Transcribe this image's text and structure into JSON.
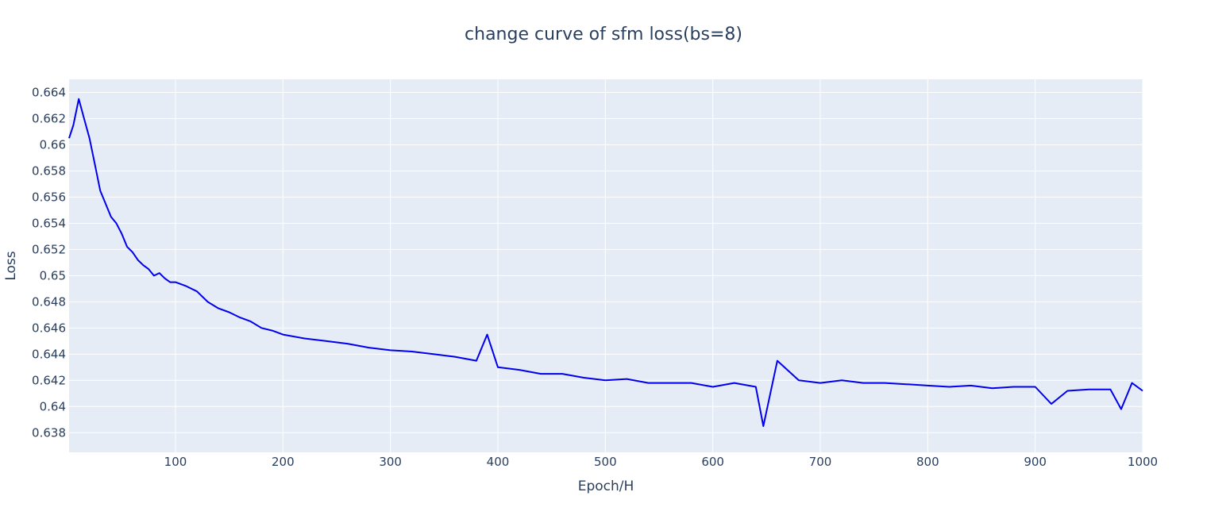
{
  "chart_data": {
    "type": "line",
    "title": "change curve of sfm loss(bs=8)",
    "xlabel": "Epoch/H",
    "ylabel": "Loss",
    "xlim": [
      1,
      1000
    ],
    "ylim": [
      0.6365,
      0.665
    ],
    "x_ticks": [
      100,
      200,
      300,
      400,
      500,
      600,
      700,
      800,
      900,
      1000
    ],
    "y_ticks": [
      0.638,
      0.64,
      0.642,
      0.644,
      0.646,
      0.648,
      0.65,
      0.652,
      0.654,
      0.656,
      0.658,
      0.66,
      0.662,
      0.664
    ],
    "grid": true,
    "line_color": "#0000ee",
    "background": "#e5ecf6",
    "series": [
      {
        "x": [
          1,
          5,
          10,
          15,
          20,
          25,
          30,
          35,
          40,
          45,
          50,
          55,
          60,
          65,
          70,
          75,
          80,
          85,
          90,
          95,
          100,
          110,
          120,
          130,
          140,
          150,
          160,
          170,
          180,
          190,
          200,
          220,
          240,
          260,
          280,
          300,
          320,
          340,
          360,
          380,
          390,
          400,
          420,
          440,
          460,
          480,
          500,
          520,
          540,
          560,
          580,
          600,
          620,
          640,
          647,
          660,
          680,
          700,
          720,
          740,
          760,
          780,
          800,
          820,
          840,
          860,
          880,
          900,
          915,
          930,
          950,
          970,
          980,
          990,
          1000
        ],
        "y": [
          0.6605,
          0.6615,
          0.6635,
          0.662,
          0.6605,
          0.6585,
          0.6565,
          0.6555,
          0.6545,
          0.654,
          0.6532,
          0.6522,
          0.6518,
          0.6512,
          0.6508,
          0.6505,
          0.65,
          0.6502,
          0.6498,
          0.6495,
          0.6495,
          0.6492,
          0.6488,
          0.648,
          0.6475,
          0.6472,
          0.6468,
          0.6465,
          0.646,
          0.6458,
          0.6455,
          0.6452,
          0.645,
          0.6448,
          0.6445,
          0.6443,
          0.6442,
          0.644,
          0.6438,
          0.6435,
          0.6455,
          0.643,
          0.6428,
          0.6425,
          0.6425,
          0.6422,
          0.642,
          0.6421,
          0.6418,
          0.6418,
          0.6418,
          0.6415,
          0.6418,
          0.6415,
          0.6385,
          0.6435,
          0.642,
          0.6418,
          0.642,
          0.6418,
          0.6418,
          0.6417,
          0.6416,
          0.6415,
          0.6416,
          0.6414,
          0.6415,
          0.6415,
          0.6402,
          0.6412,
          0.6413,
          0.6413,
          0.6398,
          0.6418,
          0.6412
        ]
      }
    ]
  }
}
